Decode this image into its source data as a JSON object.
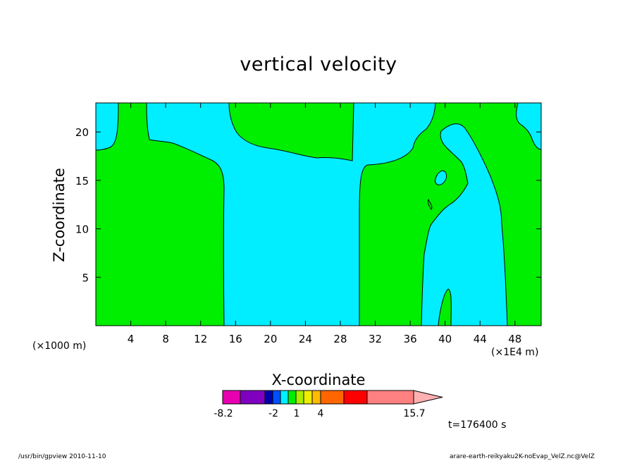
{
  "chart_data": {
    "type": "contour",
    "title": "vertical velocity",
    "xlabel": "X-coordinate",
    "ylabel": "Z-coordinate",
    "x_unit_left": "(×1000 m)",
    "x_unit_right": "(×1E4 m)",
    "xlim": [
      0,
      51
    ],
    "ylim": [
      0,
      23
    ],
    "x_ticks": [
      "4",
      "8",
      "12",
      "16",
      "20",
      "24",
      "28",
      "32",
      "36",
      "40",
      "44",
      "48"
    ],
    "y_ticks": [
      "5",
      "10",
      "15",
      "20"
    ],
    "x_tick_values": [
      4,
      8,
      12,
      16,
      20,
      24,
      28,
      32,
      36,
      40,
      44,
      48
    ],
    "y_tick_values": [
      5,
      10,
      15,
      20
    ],
    "regions": [
      {
        "name": "positive",
        "color": "#00ee00"
      },
      {
        "name": "negative",
        "color": "#00eeff"
      }
    ],
    "colorbar": {
      "colors": [
        "#e800b0",
        "#8000c0",
        "#0000aa",
        "#0050ff",
        "#00eeff",
        "#00ee00",
        "#aaee00",
        "#eeee00",
        "#ffbb00",
        "#ff6600",
        "#ff0000",
        "#ff8080",
        "#ffb0b0"
      ],
      "labels": [
        "-8.2",
        "-2",
        "1",
        "4",
        "15.7"
      ]
    },
    "time_label": "t=176400 s"
  },
  "footer": {
    "left": "/usr/bin/gpview   2010-11-10",
    "right": "arare-earth-reikyaku2K-noEvap_VelZ.nc@VelZ"
  }
}
